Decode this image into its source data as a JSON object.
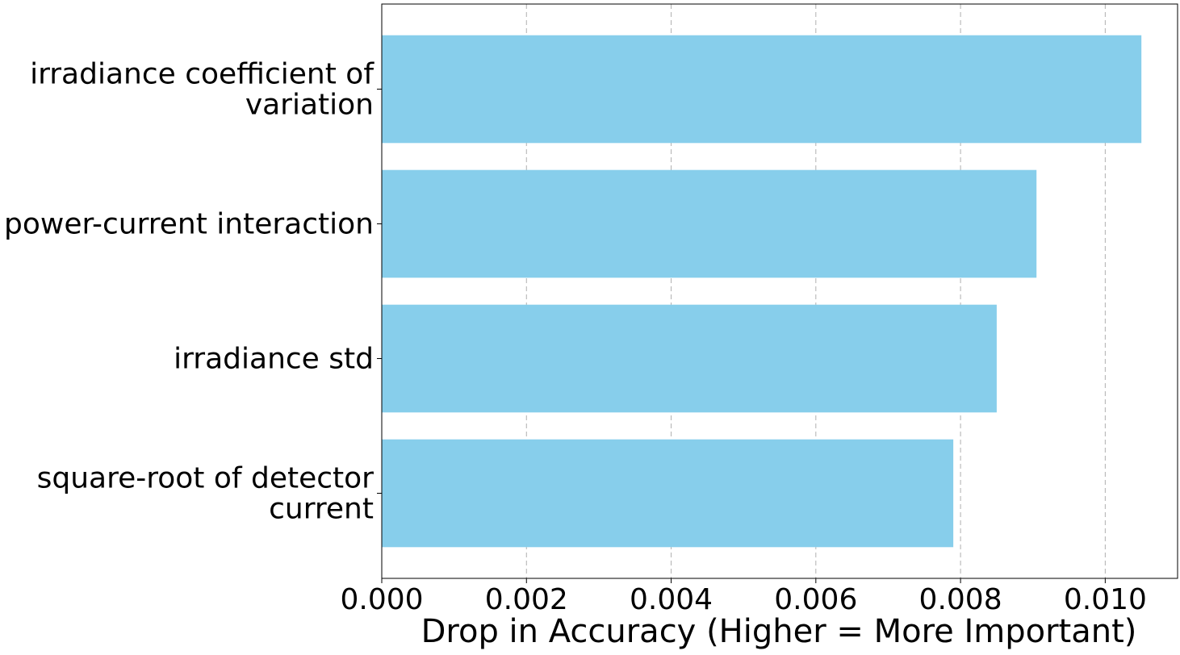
{
  "chart_data": {
    "type": "bar",
    "orientation": "horizontal",
    "categories": [
      [
        "irradiance coefficient of",
        "variation"
      ],
      [
        "power-current interaction"
      ],
      [
        "irradiance std"
      ],
      [
        "square-root of detector",
        "current"
      ]
    ],
    "values": [
      0.0105,
      0.00905,
      0.0085,
      0.0079
    ],
    "bar_color": "#87CEEB",
    "xlabel": "Drop in Accuracy (Higher = More Important)",
    "ylabel": "",
    "title": "",
    "xlim": [
      0,
      0.011
    ],
    "xticks": [
      "0.000",
      "0.002",
      "0.004",
      "0.006",
      "0.008",
      "0.010"
    ],
    "xtick_values": [
      0,
      0.002,
      0.004,
      0.006,
      0.008,
      0.01
    ],
    "grid": "x-dashed",
    "legend": "none"
  }
}
